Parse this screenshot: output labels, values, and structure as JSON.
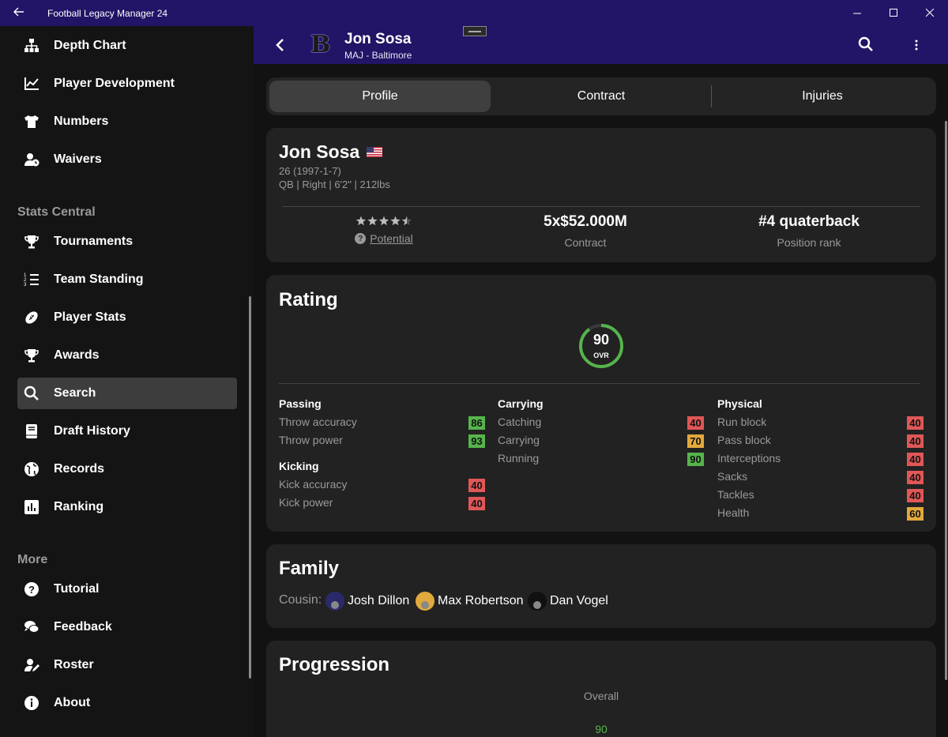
{
  "window": {
    "title": "Football Legacy Manager 24"
  },
  "sidebar": {
    "top_items": [
      {
        "label": "Depth Chart",
        "icon": "sitemap-icon"
      },
      {
        "label": "Player Development",
        "icon": "chart-line-icon"
      },
      {
        "label": "Numbers",
        "icon": "shirt-icon"
      },
      {
        "label": "Waivers",
        "icon": "user-clock-icon"
      }
    ],
    "stats_heading": "Stats Central",
    "stats_items": [
      {
        "label": "Tournaments",
        "icon": "trophy-icon"
      },
      {
        "label": "Team Standing",
        "icon": "list-ordered-icon"
      },
      {
        "label": "Player Stats",
        "icon": "football-icon"
      },
      {
        "label": "Awards",
        "icon": "award-icon"
      },
      {
        "label": "Search",
        "icon": "search-icon",
        "active": true
      },
      {
        "label": "Draft History",
        "icon": "book-icon"
      },
      {
        "label": "Records",
        "icon": "globe-icon"
      },
      {
        "label": "Ranking",
        "icon": "bar-chart-icon"
      }
    ],
    "more_heading": "More",
    "more_items": [
      {
        "label": "Tutorial",
        "icon": "question-icon"
      },
      {
        "label": "Feedback",
        "icon": "comments-icon"
      },
      {
        "label": "Roster",
        "icon": "user-edit-icon"
      },
      {
        "label": "About",
        "icon": "info-icon"
      }
    ]
  },
  "header": {
    "player_name": "Jon Sosa",
    "team": "MAJ - Baltimore",
    "logo_letter": "B"
  },
  "tabs": [
    "Profile",
    "Contract",
    "Injuries"
  ],
  "active_tab": "Profile",
  "profile": {
    "name": "Jon Sosa",
    "age_line": "26 (1997-1-7)",
    "info_line": "QB | Right | 6'2\" | 212lbs",
    "potential_stars": 4.5,
    "potential_label": "Potential",
    "contract_value": "5x$52.000M",
    "contract_label": "Contract",
    "rank_value": "#4 quaterback",
    "rank_label": "Position rank"
  },
  "rating": {
    "title": "Rating",
    "overall": "90",
    "overall_label": "OVR",
    "groups": [
      {
        "name": "Passing",
        "attrs": [
          {
            "name": "Throw accuracy",
            "value": "86",
            "color": "#56b44c"
          },
          {
            "name": "Throw power",
            "value": "93",
            "color": "#56b44c"
          }
        ]
      },
      {
        "name": "Kicking",
        "attrs": [
          {
            "name": "Kick accuracy",
            "value": "40",
            "color": "#e05757"
          },
          {
            "name": "Kick power",
            "value": "40",
            "color": "#e05757"
          }
        ]
      },
      {
        "name": "Carrying",
        "attrs": [
          {
            "name": "Catching",
            "value": "40",
            "color": "#e05757"
          },
          {
            "name": "Carrying",
            "value": "70",
            "color": "#e2a93c"
          },
          {
            "name": "Running",
            "value": "90",
            "color": "#56b44c"
          }
        ]
      },
      {
        "name": "Physical",
        "attrs": [
          {
            "name": "Run block",
            "value": "40",
            "color": "#e05757"
          },
          {
            "name": "Pass block",
            "value": "40",
            "color": "#e05757"
          },
          {
            "name": "Interceptions",
            "value": "40",
            "color": "#e05757"
          },
          {
            "name": "Sacks",
            "value": "40",
            "color": "#e05757"
          },
          {
            "name": "Tackles",
            "value": "40",
            "color": "#e05757"
          },
          {
            "name": "Health",
            "value": "60",
            "color": "#e2a93c"
          }
        ]
      }
    ]
  },
  "family": {
    "title": "Family",
    "relation_label": "Cousin:",
    "relatives": [
      {
        "name": "Josh Dillon",
        "color": "#2a2a6a"
      },
      {
        "name": "Max Robertson",
        "color": "#e2a93c"
      },
      {
        "name": "Dan Vogel",
        "color": "#111111"
      }
    ]
  },
  "progression": {
    "title": "Progression",
    "series_label": "Overall",
    "value": "90"
  },
  "colors": {
    "accent": "#221466",
    "good": "#56b44c",
    "bad": "#e05757",
    "mid": "#e2a93c"
  }
}
